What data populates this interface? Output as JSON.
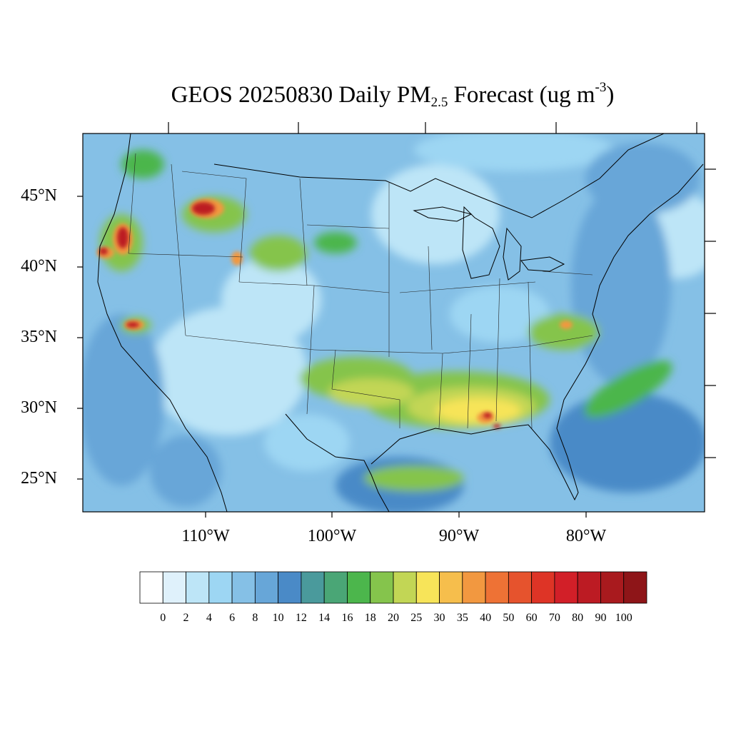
{
  "title": {
    "prefix": "GEOS 20250830 Daily PM",
    "subscript": "2.5",
    "middle": " Forecast (ug m",
    "superscript": "-3",
    "suffix": ")"
  },
  "lat_labels": [
    "45°N",
    "40°N",
    "35°N",
    "30°N",
    "25°N"
  ],
  "lon_labels": [
    "110°W",
    "100°W",
    "90°W",
    "80°W"
  ],
  "colorbar": {
    "labels": [
      "0",
      "2",
      "4",
      "6",
      "8",
      "10",
      "12",
      "14",
      "16",
      "18",
      "20",
      "25",
      "30",
      "35",
      "40",
      "50",
      "60",
      "70",
      "80",
      "90",
      "100"
    ],
    "colors": [
      "#ffffff",
      "#dff1fb",
      "#bde5f7",
      "#9dd6f3",
      "#85c0e6",
      "#67a6d8",
      "#4a8ac7",
      "#4a9a9c",
      "#4aa676",
      "#4cb64c",
      "#85c44c",
      "#c2d655",
      "#f7e459",
      "#f6be4c",
      "#f29840",
      "#ee7235",
      "#e6532d",
      "#de3426",
      "#d21f28",
      "#bc1b23",
      "#a91a1e",
      "#8e1518"
    ]
  },
  "map": {
    "background_color": "#6faedf",
    "hotspot_colors": {
      "low": "#4cb64c",
      "mid": "#f7e459",
      "high": "#f29840",
      "extreme": "#bc1b23"
    }
  }
}
